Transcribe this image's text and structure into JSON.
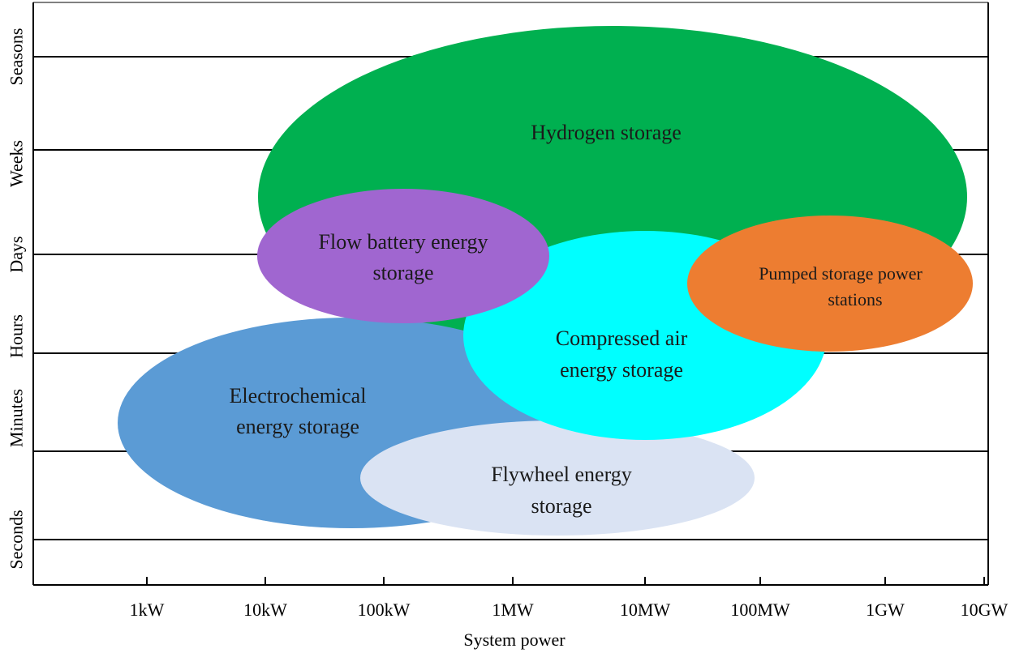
{
  "chart_data": {
    "type": "bubble-region",
    "xlabel": "System power",
    "ylabel": "",
    "x_ticks": [
      "1kW",
      "10kW",
      "100kW",
      "1MW",
      "10MW",
      "100MW",
      "1GW",
      "10GW"
    ],
    "y_bands": [
      "Seconds",
      "Minutes",
      "Hours",
      "Days",
      "Weeks",
      "Seasons"
    ],
    "regions": [
      {
        "name_lines": [
          "Hydrogen storage"
        ],
        "color": "#00b050",
        "power_range": [
          "30kW",
          "5GW"
        ],
        "duration_range": [
          "Hours",
          "Seasons"
        ]
      },
      {
        "name_lines": [
          "Electrochemical",
          "energy storage"
        ],
        "color": "#5b9bd5",
        "power_range": [
          "1kW",
          "3MW"
        ],
        "duration_range": [
          "Seconds",
          "Hours"
        ]
      },
      {
        "name_lines": [
          "Flywheel energy",
          "storage"
        ],
        "color": "#dae3f3",
        "power_range": [
          "100kW",
          "30MW"
        ],
        "duration_range": [
          "Seconds",
          "Minutes"
        ]
      },
      {
        "name_lines": [
          "Compressed air",
          "energy storage"
        ],
        "color": "#00ffff",
        "power_range": [
          "1MW",
          "300MW"
        ],
        "duration_range": [
          "Minutes",
          "Days"
        ]
      },
      {
        "name_lines": [
          "Flow battery energy",
          "storage"
        ],
        "color": "#a066d0",
        "power_range": [
          "30kW",
          "1MW"
        ],
        "duration_range": [
          "Hours",
          "Days"
        ]
      },
      {
        "name_lines": [
          "Pumped storage power",
          "stations"
        ],
        "color": "#ed7d31",
        "power_range": [
          "100MW",
          "5GW"
        ],
        "duration_range": [
          "Hours",
          "Days"
        ]
      }
    ]
  }
}
